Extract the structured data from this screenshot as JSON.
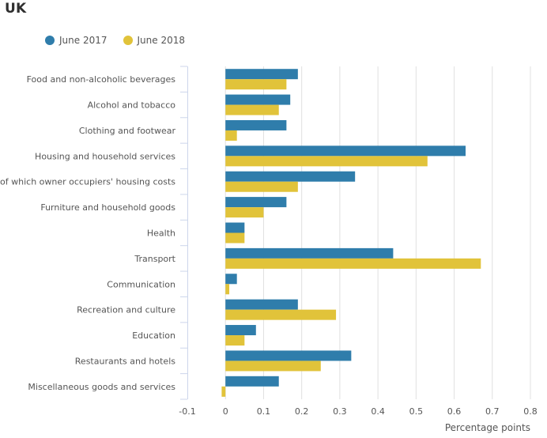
{
  "title": "UK",
  "legend": [
    {
      "label": "June 2017",
      "color": "#2f7dab"
    },
    {
      "label": "June 2018",
      "color": "#e1c33a"
    }
  ],
  "chart_data": {
    "type": "bar",
    "orientation": "horizontal",
    "title": "UK",
    "xlabel": "Percentage points",
    "ylabel": "",
    "xlim": [
      -0.1,
      0.8
    ],
    "xticks": [
      "-0.1",
      "0",
      "0.1",
      "0.2",
      "0.3",
      "0.4",
      "0.5",
      "0.6",
      "0.7",
      "0.8"
    ],
    "grid": true,
    "legend_position": "top-left",
    "categories": [
      "Food and non-alcoholic beverages",
      "Alcohol and tobacco",
      "Clothing and footwear",
      "Housing and household services",
      "of which owner occupiers' housing costs",
      "Furniture and household goods",
      "Health",
      "Transport",
      "Communication",
      "Recreation and culture",
      "Education",
      "Restaurants and hotels",
      "Miscellaneous goods and services"
    ],
    "series": [
      {
        "name": "June 2017",
        "color": "#2f7dab",
        "values": [
          0.19,
          0.17,
          0.16,
          0.63,
          0.34,
          0.16,
          0.05,
          0.44,
          0.03,
          0.19,
          0.08,
          0.33,
          0.14
        ]
      },
      {
        "name": "June 2018",
        "color": "#e1c33a",
        "values": [
          0.16,
          0.14,
          0.03,
          0.53,
          0.19,
          0.1,
          0.05,
          0.67,
          0.01,
          0.29,
          0.05,
          0.25,
          -0.01
        ]
      }
    ]
  }
}
